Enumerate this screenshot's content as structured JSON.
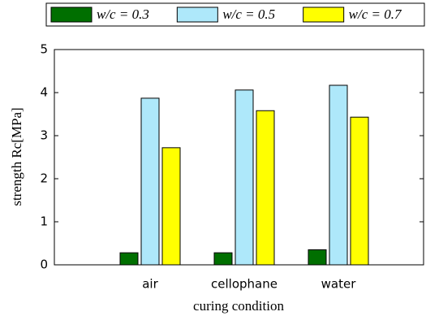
{
  "chart_data": {
    "type": "bar",
    "xlabel": "curing condition",
    "ylabel": "strength Rc[MPa]",
    "categories": [
      "air",
      "cellophane",
      "water"
    ],
    "series": [
      {
        "name": "w/c = 0.3",
        "color": "#006f00",
        "values": [
          0.28,
          0.28,
          0.35
        ]
      },
      {
        "name": "w/c = 0.5",
        "color": "#aee8fa",
        "values": [
          3.87,
          4.06,
          4.17
        ]
      },
      {
        "name": "w/c = 0.7",
        "color": "#ffff00",
        "values": [
          2.72,
          3.58,
          3.43
        ]
      }
    ],
    "ylim": [
      0,
      5
    ],
    "yticks": [
      0,
      1,
      2,
      3,
      4,
      5
    ],
    "grid": false,
    "legend": "top"
  }
}
